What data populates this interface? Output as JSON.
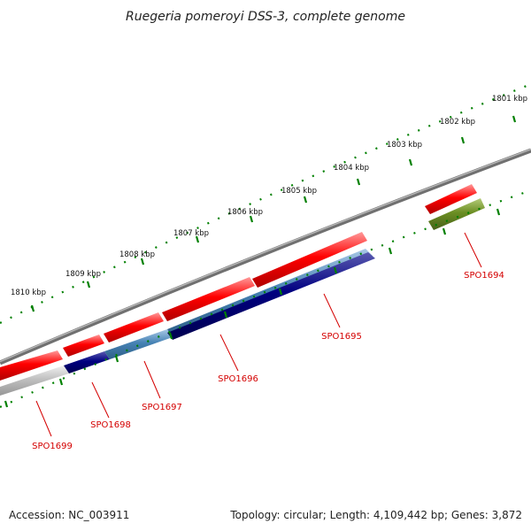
{
  "header": {
    "title": "Ruegeria pomeroyi DSS-3, complete genome"
  },
  "footer": {
    "accession": "Accession: NC_003911",
    "summary": "Topology: circular; Length: 4,109,442 bp; Genes: 3,872"
  },
  "ruler": {
    "ticks": [
      "1801 kbp",
      "1802 kbp",
      "1803 kbp",
      "1804 kbp",
      "1805 kbp",
      "1806 kbp",
      "1807 kbp",
      "1808 kbp",
      "1809 kbp",
      "1810 kbp"
    ]
  },
  "genes": [
    {
      "label": "SPO1694",
      "strand": "plus",
      "color": "#ff0000"
    },
    {
      "label": "SPO1694",
      "strand": "minus",
      "color": "#6b8e23"
    },
    {
      "label": "SPO1695",
      "strand": "minus",
      "color": "#000080"
    },
    {
      "label": "SPO1696",
      "strand": "minus",
      "color": "#4682b4"
    },
    {
      "label": "SPO1697",
      "strand": "minus",
      "color": "#4682b4"
    },
    {
      "label": "SPO1698",
      "strand": "minus",
      "color": "#000080"
    },
    {
      "label": "SPO1699",
      "strand": "minus",
      "color": "#c0c0c0"
    }
  ],
  "colors": {
    "backbone": "#808080",
    "tick": "#008000",
    "plus_feature": "#ff0000",
    "label": "#d40000"
  }
}
